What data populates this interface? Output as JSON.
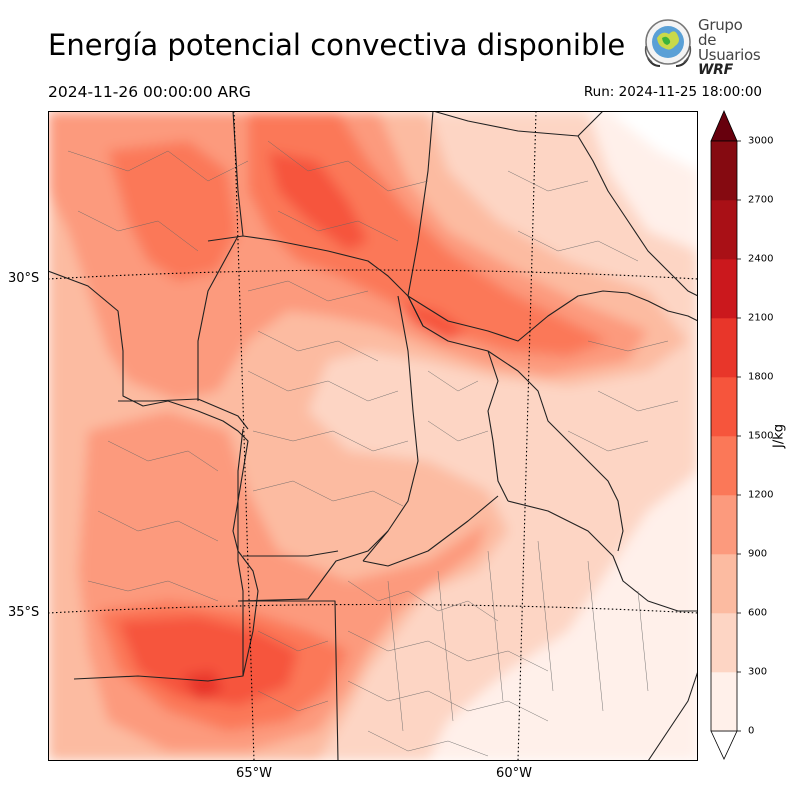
{
  "header": {
    "title": "Energía potencial convectiva disponible",
    "valid_time": "2024-11-26 00:00:00 ARG",
    "run_time": "Run: 2024-11-25 18:00:00"
  },
  "logo": {
    "line1": "Grupo de",
    "line2": "Usuarios",
    "line3": "WRF"
  },
  "map": {
    "variable": "CAPE",
    "lat_labels": [
      "30°S",
      "35°S"
    ],
    "lon_labels": [
      "65°W",
      "60°W"
    ],
    "lat_range": [
      -37.5,
      -27.5
    ],
    "lon_range": [
      -69,
      -56.5
    ],
    "colorbar": {
      "unit": "J/kg",
      "levels": [
        0,
        300,
        600,
        900,
        1200,
        1500,
        1800,
        2100,
        2400,
        2700,
        3000
      ],
      "labels": [
        "3000",
        "2700",
        "2400",
        "2100",
        "1800",
        "1500",
        "1200",
        "900",
        "600",
        "300",
        "0"
      ],
      "colors": [
        "#fff0ea",
        "#fdd5c4",
        "#fcbba1",
        "#fc9a7d",
        "#fb7858",
        "#f6553c",
        "#e8362a",
        "#cb181d",
        "#a91016",
        "#850a11"
      ],
      "extend": "both",
      "under_color": "#ffffff",
      "over_color": "#67000d"
    }
  }
}
